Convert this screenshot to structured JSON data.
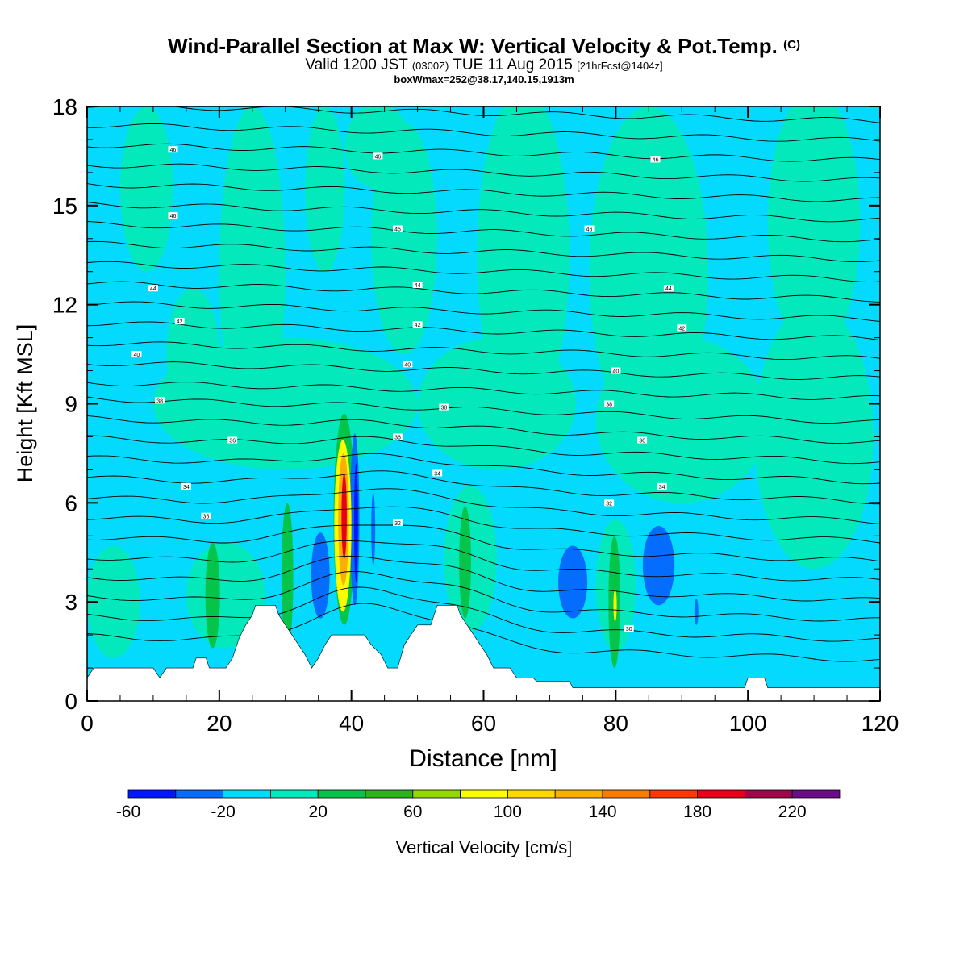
{
  "header": {
    "title_main": "Wind-Parallel Section at Max W: Vertical Velocity & Pot.Temp.",
    "title_copyright": "(C)",
    "subtitle_valid": "Valid 1200 JST",
    "subtitle_utc": "(0300Z)",
    "subtitle_date": "TUE 11 Aug 2015",
    "subtitle_fcst": "[21hrFcst@1404z]",
    "subtitle2": "boxWmax=252@38.17,140.15,1913m"
  },
  "colors": {
    "bg_fill": "#04dafd",
    "light_green": "#04e9bb",
    "green": "#05c44a",
    "dark_green": "#2bb31a",
    "yellow": "#fcfc00",
    "orange": "#fcae00",
    "red": "#e8001a",
    "blue": "#046dfd",
    "dark_blue": "#0018fd",
    "contour": "#000000"
  },
  "chart_data": {
    "type": "heatmap",
    "xlabel": "Distance [nm]",
    "ylabel": "Height [Kft MSL]",
    "xlim": [
      0,
      120
    ],
    "ylim": [
      0,
      18
    ],
    "xticks": [
      0,
      20,
      40,
      60,
      80,
      100,
      120
    ],
    "yticks": [
      0,
      3,
      6,
      9,
      12,
      15,
      18
    ],
    "colorbar": {
      "title": "Vertical Velocity [cm/s]",
      "bins": [
        -60,
        -40,
        -20,
        0,
        20,
        40,
        60,
        80,
        100,
        120,
        140,
        160,
        180,
        200,
        220,
        240
      ],
      "colors": [
        "#0018fd",
        "#046dfd",
        "#04dafd",
        "#04e9bb",
        "#05c44a",
        "#2bb31a",
        "#95d800",
        "#fcfc00",
        "#fcd800",
        "#fcae00",
        "#fc7c00",
        "#fc3a00",
        "#e8001a",
        "#a0064a",
        "#6b0a8a"
      ],
      "tick_labels": [
        "-60",
        "-20",
        "20",
        "60",
        "100",
        "140",
        "180",
        "220"
      ]
    },
    "terrain_kft": [
      [
        0,
        0.7
      ],
      [
        1,
        1.0
      ],
      [
        10,
        1.0
      ],
      [
        11,
        0.7
      ],
      [
        12,
        1.0
      ],
      [
        16,
        1.0
      ],
      [
        16.5,
        1.3
      ],
      [
        18,
        1.3
      ],
      [
        18.5,
        1.0
      ],
      [
        21,
        1.0
      ],
      [
        22,
        1.3
      ],
      [
        22.5,
        1.6
      ],
      [
        23,
        1.9
      ],
      [
        24,
        2.3
      ],
      [
        25,
        2.6
      ],
      [
        25.5,
        2.9
      ],
      [
        28.5,
        2.9
      ],
      [
        29,
        2.6
      ],
      [
        30,
        2.3
      ],
      [
        31,
        2.0
      ],
      [
        32,
        1.7
      ],
      [
        33,
        1.4
      ],
      [
        34,
        1.0
      ],
      [
        35,
        1.3
      ],
      [
        36,
        1.7
      ],
      [
        37,
        2.0
      ],
      [
        42,
        2.0
      ],
      [
        43,
        1.7
      ],
      [
        44.5,
        1.4
      ],
      [
        45.5,
        1.0
      ],
      [
        47,
        1.0
      ],
      [
        48,
        1.7
      ],
      [
        49,
        2.0
      ],
      [
        50,
        2.3
      ],
      [
        52,
        2.3
      ],
      [
        52.5,
        2.6
      ],
      [
        53,
        2.9
      ],
      [
        56,
        2.9
      ],
      [
        56.5,
        2.6
      ],
      [
        57.5,
        2.3
      ],
      [
        58.5,
        2.0
      ],
      [
        59.5,
        1.7
      ],
      [
        60.5,
        1.4
      ],
      [
        61.5,
        1.0
      ],
      [
        64,
        1.0
      ],
      [
        65,
        0.7
      ],
      [
        67.5,
        0.7
      ],
      [
        68,
        0.6
      ],
      [
        73,
        0.6
      ],
      [
        73.5,
        0.4
      ],
      [
        99.5,
        0.4
      ],
      [
        100,
        0.7
      ],
      [
        102.5,
        0.7
      ],
      [
        103,
        0.4
      ],
      [
        120,
        0.4
      ]
    ],
    "theta_labels": [
      {
        "x": 13,
        "y": 16.7,
        "text": "46"
      },
      {
        "x": 44,
        "y": 16.5,
        "text": "46"
      },
      {
        "x": 86,
        "y": 16.4,
        "text": "46"
      },
      {
        "x": 13,
        "y": 14.7,
        "text": "46"
      },
      {
        "x": 47,
        "y": 14.3,
        "text": "46"
      },
      {
        "x": 76,
        "y": 14.3,
        "text": "46"
      },
      {
        "x": 10,
        "y": 12.5,
        "text": "44"
      },
      {
        "x": 50,
        "y": 12.6,
        "text": "44"
      },
      {
        "x": 88,
        "y": 12.5,
        "text": "44"
      },
      {
        "x": 14,
        "y": 11.5,
        "text": "42"
      },
      {
        "x": 50,
        "y": 11.4,
        "text": "42"
      },
      {
        "x": 90,
        "y": 11.3,
        "text": "42"
      },
      {
        "x": 7.5,
        "y": 10.5,
        "text": "40"
      },
      {
        "x": 48.5,
        "y": 10.2,
        "text": "40"
      },
      {
        "x": 80,
        "y": 10.0,
        "text": "40"
      },
      {
        "x": 11,
        "y": 9.1,
        "text": "38"
      },
      {
        "x": 54,
        "y": 8.9,
        "text": "38"
      },
      {
        "x": 79,
        "y": 9.0,
        "text": "38"
      },
      {
        "x": 22,
        "y": 7.9,
        "text": "36"
      },
      {
        "x": 47,
        "y": 8.0,
        "text": "36"
      },
      {
        "x": 84,
        "y": 7.9,
        "text": "36"
      },
      {
        "x": 15,
        "y": 6.5,
        "text": "34"
      },
      {
        "x": 53,
        "y": 6.9,
        "text": "34"
      },
      {
        "x": 87,
        "y": 6.5,
        "text": "34"
      },
      {
        "x": 18,
        "y": 5.6,
        "text": "36"
      },
      {
        "x": 47,
        "y": 5.4,
        "text": "32"
      },
      {
        "x": 79,
        "y": 6.0,
        "text": "32"
      },
      {
        "x": 82,
        "y": 2.2,
        "text": "30"
      }
    ]
  }
}
